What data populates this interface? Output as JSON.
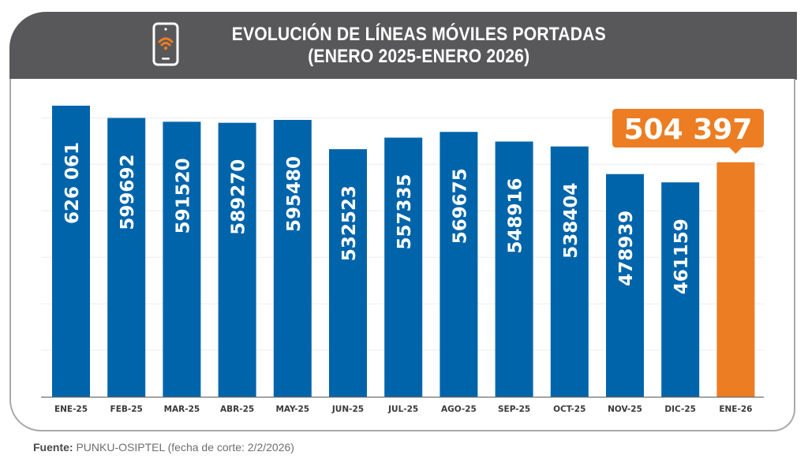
{
  "header": {
    "title_line1": "EVOLUCIÓN DE LÍNEAS MÓVILES PORTADAS",
    "title_line2": "(ENERO 2025-ENERO 2026)",
    "icon": "smartphone-wifi-icon"
  },
  "colors": {
    "bar": "#0064aa",
    "highlight": "#ec7d22",
    "header_bg": "#58585a",
    "grid": "#ececec"
  },
  "chart_data": {
    "type": "bar",
    "title": "EVOLUCIÓN DE LÍNEAS MÓVILES PORTADAS (ENERO 2025-ENERO 2026)",
    "xlabel": "",
    "ylabel": "",
    "ylim": [
      0,
      650000
    ],
    "grid": true,
    "grid_step": 100000,
    "categories": [
      "ENE-25",
      "FEB-25",
      "MAR-25",
      "ABR-25",
      "MAY-25",
      "JUN-25",
      "JUL-25",
      "AGO-25",
      "SEP-25",
      "OCT-25",
      "NOV-25",
      "DIC-25",
      "ENE-26"
    ],
    "values": [
      626061,
      599692,
      591520,
      589270,
      595480,
      532523,
      557335,
      569675,
      548916,
      538404,
      478939,
      461159,
      504397
    ],
    "labels": [
      "626 061",
      "599692",
      "591520",
      "589270",
      "595480",
      "532523",
      "557335",
      "569675",
      "548916",
      "538404",
      "478939",
      "461159",
      "504 397"
    ],
    "highlight_index": 12,
    "highlight_callout": "504 397"
  },
  "footer": {
    "source_label": "Fuente:",
    "source_text": "PUNKU-OSIPTEL (fecha de corte: 2/2/2026)"
  }
}
